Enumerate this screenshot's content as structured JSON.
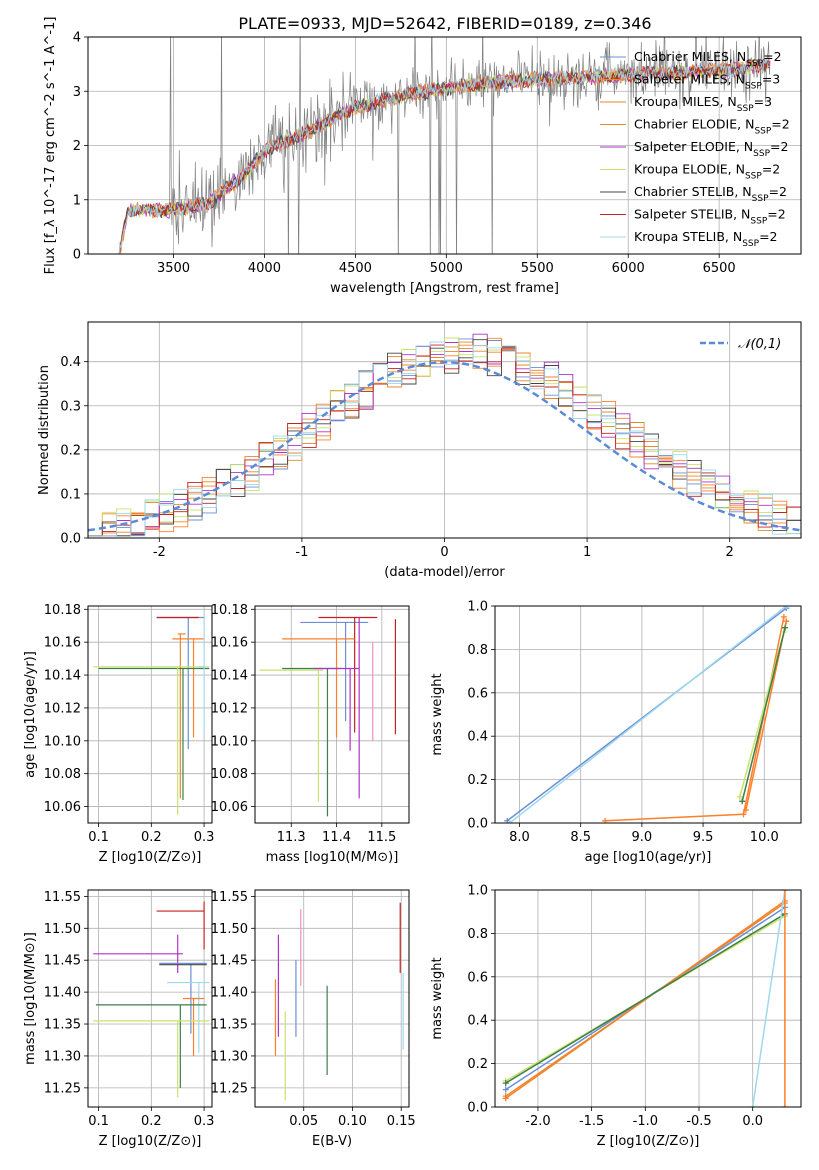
{
  "figure_title": "PLATE=0933, MJD=52642, FIBERID=0189, z=0.346",
  "colors": [
    "#6b8fd6",
    "#ff7f2a",
    "#e8882c",
    "#e8882c",
    "#b133c9",
    "#c8e36a",
    "#444444",
    "#c42222",
    "#9fd8ef"
  ],
  "extra_colors": {
    "green": "#3d7f4a",
    "pink": "#f08fbf",
    "gray": "#808080",
    "cyan": "#8fd6e0",
    "dashed": "#5b8bd6"
  },
  "legend_spectrum": [
    "Chabrier MILES, N_SSP=2",
    "Salpeter MILES, N_SSP=3",
    "Kroupa MILES, N_SSP=3",
    "Chabrier ELODIE, N_SSP=2",
    "Salpeter ELODIE, N_SSP=2",
    "Kroupa ELODIE, N_SSP=2",
    "Chabrier STELIB, N_SSP=2",
    "Salpeter STELIB, N_SSP=2",
    "Kroupa STELIB, N_SSP=2"
  ],
  "legend_resid": "𝒩(0,1)",
  "chart_data": [
    {
      "type": "line",
      "xlabel": "wavelength [Angstrom, rest frame]",
      "ylabel": "Flux [f_λ 10^-17 erg cm^-2 s^-1 A^-1]",
      "xlim": [
        3030,
        6950
      ],
      "ylim": [
        0,
        4
      ],
      "xticks": [
        3500,
        4000,
        4500,
        5000,
        5500,
        6000,
        6500
      ],
      "yticks": [
        0,
        1,
        2,
        3,
        4
      ],
      "grid": true,
      "legend": "upper right",
      "series_shape": {
        "anchors_x": [
          3200,
          3250,
          3300,
          3500,
          3700,
          3900,
          4000,
          4200,
          4500,
          4800,
          5100,
          5400,
          5700,
          6000,
          6300,
          6600,
          6780
        ],
        "anchors_y": [
          0.0,
          0.78,
          0.82,
          0.8,
          0.95,
          1.5,
          1.9,
          2.2,
          2.7,
          2.95,
          3.1,
          3.2,
          3.25,
          3.3,
          3.35,
          3.4,
          3.5
        ]
      }
    },
    {
      "type": "histogram",
      "xlabel": "(data-model)/error",
      "ylabel": "Normed distribution",
      "xlim": [
        -2.5,
        2.5
      ],
      "ylim": [
        0,
        0.49
      ],
      "xticks": [
        -2,
        -1,
        0,
        1,
        2
      ],
      "yticks": [
        0.0,
        0.1,
        0.2,
        0.3,
        0.4
      ],
      "grid": true,
      "legend": "upper right",
      "bin_width": 0.1,
      "reference_curve": "normal(0,1)"
    },
    {
      "type": "errorbar",
      "xlabel": "Z [log10(Z/Z⊙)]",
      "ylabel": "age  [log10(age/yr)]",
      "xlim": [
        0.08,
        0.315
      ],
      "ylim": [
        10.05,
        10.182
      ],
      "xticks": [
        0.1,
        0.2,
        0.3
      ],
      "yticks": [
        10.06,
        10.08,
        10.1,
        10.12,
        10.14,
        10.16,
        10.18
      ],
      "grid": true,
      "points": [
        {
          "x": 0.27,
          "xerr": [
            0.06,
            0.03
          ],
          "y": 10.175,
          "yerr": [
            0.08,
            0.0
          ],
          "c": 0
        },
        {
          "x": 0.28,
          "xerr": [
            0.04,
            0.02
          ],
          "y": 10.162,
          "yerr": [
            0.06,
            0.0
          ],
          "c": 1
        },
        {
          "x": 0.255,
          "xerr": [
            0.005,
            0.01
          ],
          "y": 10.165,
          "yerr": [
            0.1,
            0.0
          ],
          "c": 3
        },
        {
          "x": 0.27,
          "xerr": [
            0.06,
            0.02
          ],
          "y": 10.175,
          "yerr": [
            0.0,
            0.0
          ],
          "c": 7
        },
        {
          "x": 0.26,
          "xerr": [
            0.16,
            0.05
          ],
          "y": 10.144,
          "yerr": [
            0.08,
            0.0
          ],
          "c": "green"
        },
        {
          "x": 0.25,
          "xerr": [
            0.16,
            0.06
          ],
          "y": 10.145,
          "yerr": [
            0.09,
            0.0
          ],
          "c": 5
        },
        {
          "x": 0.3,
          "xerr": [
            0.01,
            0.0
          ],
          "y": 10.145,
          "yerr": [
            0.04,
            0.03
          ],
          "c": 8
        }
      ]
    },
    {
      "type": "errorbar",
      "xlabel": "mass [log10(M/M⊙)]",
      "ylabel": "",
      "xlim": [
        11.22,
        11.56
      ],
      "ylim": [
        10.05,
        10.182
      ],
      "xticks": [
        11.3,
        11.4,
        11.5
      ],
      "yticks": [
        10.06,
        10.08,
        10.1,
        10.12,
        10.14,
        10.16,
        10.18
      ],
      "grid": true,
      "points": [
        {
          "x": 11.42,
          "xerr": [
            0.1,
            0.05
          ],
          "y": 10.172,
          "yerr": [
            0.06,
            0.0
          ],
          "c": 0
        },
        {
          "x": 11.44,
          "xerr": [
            0.08,
            0.05
          ],
          "y": 10.175,
          "yerr": [
            0.07,
            0.0
          ],
          "c": 7
        },
        {
          "x": 11.45,
          "xerr": [
            0.0,
            0.0
          ],
          "y": 10.175,
          "yerr": [
            0.11,
            0.0
          ],
          "c": 4
        },
        {
          "x": 11.4,
          "xerr": [
            0.12,
            0.04
          ],
          "y": 10.162,
          "yerr": [
            0.06,
            0.0
          ],
          "c": 1
        },
        {
          "x": 11.38,
          "xerr": [
            0.1,
            0.03
          ],
          "y": 10.144,
          "yerr": [
            0.09,
            0.0
          ],
          "c": "green"
        },
        {
          "x": 11.43,
          "xerr": [
            0.08,
            0.02
          ],
          "y": 10.144,
          "yerr": [
            0.05,
            0.0
          ],
          "c": 4
        },
        {
          "x": 11.36,
          "xerr": [
            0.13,
            0.01
          ],
          "y": 10.143,
          "yerr": [
            0.08,
            0.0
          ],
          "c": 5
        },
        {
          "x": 11.53,
          "xerr": [
            0.0,
            0.0
          ],
          "y": 10.174,
          "yerr": [
            0.07,
            0.0
          ],
          "c": 7
        },
        {
          "x": 11.48,
          "xerr": [
            0.0,
            0.0
          ],
          "y": 10.16,
          "yerr": [
            0.06,
            0.0
          ],
          "c": "pink"
        }
      ]
    },
    {
      "type": "line",
      "xlabel": "age  [log10(age/yr)]",
      "ylabel": "mass weight",
      "xlim": [
        7.8,
        10.3
      ],
      "ylim": [
        0,
        1
      ],
      "xticks": [
        8.0,
        8.5,
        9.0,
        9.5,
        10.0
      ],
      "yticks": [
        0.0,
        0.2,
        0.4,
        0.6,
        0.8,
        1.0
      ],
      "grid": true,
      "series": [
        {
          "x": [
            7.9,
            10.18
          ],
          "y": [
            0.01,
            0.99
          ],
          "c": 0
        },
        {
          "x": [
            7.92,
            10.18
          ],
          "y": [
            0.0,
            1.0
          ],
          "c": 8
        },
        {
          "x": [
            8.7,
            9.83,
            10.16
          ],
          "y": [
            0.01,
            0.04,
            0.95
          ],
          "c": 1
        },
        {
          "x": [
            9.85,
            10.18
          ],
          "y": [
            0.06,
            0.93
          ],
          "c": 1
        },
        {
          "x": [
            9.8,
            10.16
          ],
          "y": [
            0.12,
            0.88
          ],
          "c": 5
        },
        {
          "x": [
            9.82,
            10.17
          ],
          "y": [
            0.1,
            0.9
          ],
          "c": "green"
        }
      ]
    },
    {
      "type": "errorbar",
      "xlabel": "Z [log10(Z/Z⊙)]",
      "ylabel": "mass [log10(M/M⊙)]",
      "xlim": [
        0.08,
        0.315
      ],
      "ylim": [
        11.22,
        11.56
      ],
      "xticks": [
        0.1,
        0.2,
        0.3
      ],
      "yticks": [
        11.25,
        11.3,
        11.35,
        11.4,
        11.45,
        11.5,
        11.55
      ],
      "grid": true,
      "points": [
        {
          "x": 0.3,
          "xerr": [
            0.09,
            0.0
          ],
          "y": 11.527,
          "yerr": [
            0.06,
            0.015
          ],
          "c": 7
        },
        {
          "x": 0.25,
          "xerr": [
            0.16,
            0.01
          ],
          "y": 11.46,
          "yerr": [
            0.03,
            0.03
          ],
          "c": 4
        },
        {
          "x": 0.275,
          "xerr": [
            0.06,
            0.03
          ],
          "y": 11.445,
          "yerr": [
            0.11,
            0.0
          ],
          "c": 0
        },
        {
          "x": 0.265,
          "xerr": [
            0.05,
            0.04
          ],
          "y": 11.443,
          "yerr": [
            0.0,
            0.0
          ],
          "c": 6
        },
        {
          "x": 0.29,
          "xerr": [
            0.06,
            0.02
          ],
          "y": 11.415,
          "yerr": [
            0.11,
            0.0
          ],
          "c": 8
        },
        {
          "x": 0.28,
          "xerr": [
            0.02,
            0.02
          ],
          "y": 11.39,
          "yerr": [
            0.09,
            0.0
          ],
          "c": 1
        },
        {
          "x": 0.255,
          "xerr": [
            0.16,
            0.05
          ],
          "y": 11.38,
          "yerr": [
            0.13,
            0.0
          ],
          "c": "green"
        },
        {
          "x": 0.25,
          "xerr": [
            0.16,
            0.06
          ],
          "y": 11.355,
          "yerr": [
            0.12,
            0.0
          ],
          "c": 5
        }
      ]
    },
    {
      "type": "errorbar",
      "xlabel": "E(B-V)",
      "ylabel": "",
      "xlim": [
        0.0,
        0.158
      ],
      "ylim": [
        11.22,
        11.56
      ],
      "xticks": [
        0.05,
        0.1,
        0.15
      ],
      "yticks": [
        11.25,
        11.3,
        11.35,
        11.4,
        11.45,
        11.5,
        11.55
      ],
      "grid": true,
      "points": [
        {
          "x": 0.021,
          "yl": 11.3,
          "yh": 11.42,
          "c": 1
        },
        {
          "x": 0.024,
          "yl": 11.33,
          "yh": 11.49,
          "c": 4
        },
        {
          "x": 0.031,
          "yl": 11.23,
          "yh": 11.37,
          "c": 5
        },
        {
          "x": 0.042,
          "yl": 11.33,
          "yh": 11.45,
          "c": 0
        },
        {
          "x": 0.047,
          "yl": 11.41,
          "yh": 11.53,
          "c": "pink"
        },
        {
          "x": 0.074,
          "yl": 11.27,
          "yh": 11.41,
          "c": "green"
        },
        {
          "x": 0.149,
          "yl": 11.43,
          "yh": 11.54,
          "c": 7
        },
        {
          "x": 0.152,
          "yl": 11.31,
          "yh": 11.43,
          "c": 8
        }
      ]
    },
    {
      "type": "line",
      "xlabel": "Z [log10(Z/Z⊙)]",
      "ylabel": "mass weight",
      "xlim": [
        -2.4,
        0.45
      ],
      "ylim": [
        0,
        1
      ],
      "xticks": [
        -2.0,
        -1.5,
        -1.0,
        -0.5,
        0.0
      ],
      "yticks": [
        0.0,
        0.2,
        0.4,
        0.6,
        0.8,
        1.0
      ],
      "grid": true,
      "series": [
        {
          "x": [
            -2.3,
            0.3
          ],
          "y": [
            0.08,
            0.92
          ],
          "c": 0
        },
        {
          "x": [
            -2.3,
            0.3
          ],
          "y": [
            0.04,
            0.95
          ],
          "c": 1
        },
        {
          "x": [
            -2.3,
            0.3
          ],
          "y": [
            0.05,
            0.94
          ],
          "c": 3
        },
        {
          "x": [
            -2.3,
            0.3
          ],
          "y": [
            0.12,
            0.88
          ],
          "c": 5
        },
        {
          "x": [
            -2.3,
            0.3
          ],
          "y": [
            0.11,
            0.89
          ],
          "c": "green"
        },
        {
          "x": [
            0.0,
            0.3
          ],
          "y": [
            0.0,
            1.0
          ],
          "c": 8
        },
        {
          "x": [
            0.3,
            0.3
          ],
          "y": [
            0.0,
            1.0
          ],
          "c": 1
        }
      ]
    }
  ]
}
